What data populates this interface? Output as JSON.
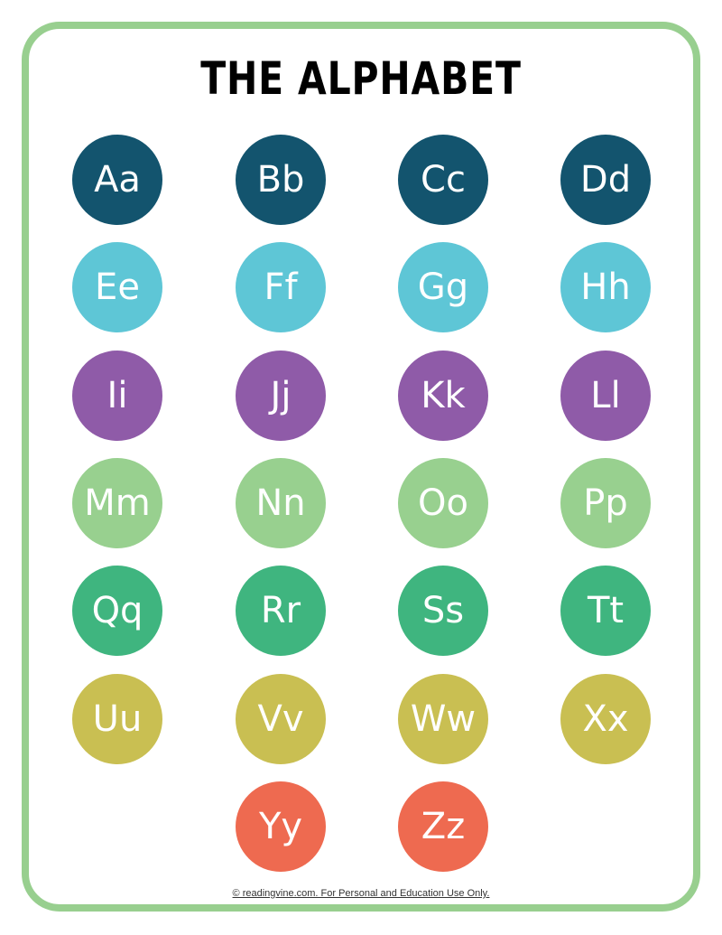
{
  "title": "THE ALPHABET",
  "rows": [
    {
      "color": "#13546e",
      "letters": [
        "Aa",
        "Bb",
        "Cc",
        "Dd"
      ]
    },
    {
      "color": "#5ec6d6",
      "letters": [
        "Ee",
        "Ff",
        "Gg",
        "Hh"
      ]
    },
    {
      "color": "#8f5ba8",
      "letters": [
        "Ii",
        "Jj",
        "Kk",
        "Ll"
      ]
    },
    {
      "color": "#98d08f",
      "letters": [
        "Mm",
        "Nn",
        "Oo",
        "Pp"
      ]
    },
    {
      "color": "#3fb57f",
      "letters": [
        "Qq",
        "Rr",
        "Ss",
        "Tt"
      ]
    },
    {
      "color": "#c9bf52",
      "letters": [
        "Uu",
        "Vv",
        "Ww",
        "Xx"
      ]
    },
    {
      "color": "#ee6a50",
      "letters": [
        "Yy",
        "Zz"
      ]
    }
  ],
  "footer": "© readingvine.com. For Personal and Education Use Only.",
  "border_color": "#98cf8f"
}
